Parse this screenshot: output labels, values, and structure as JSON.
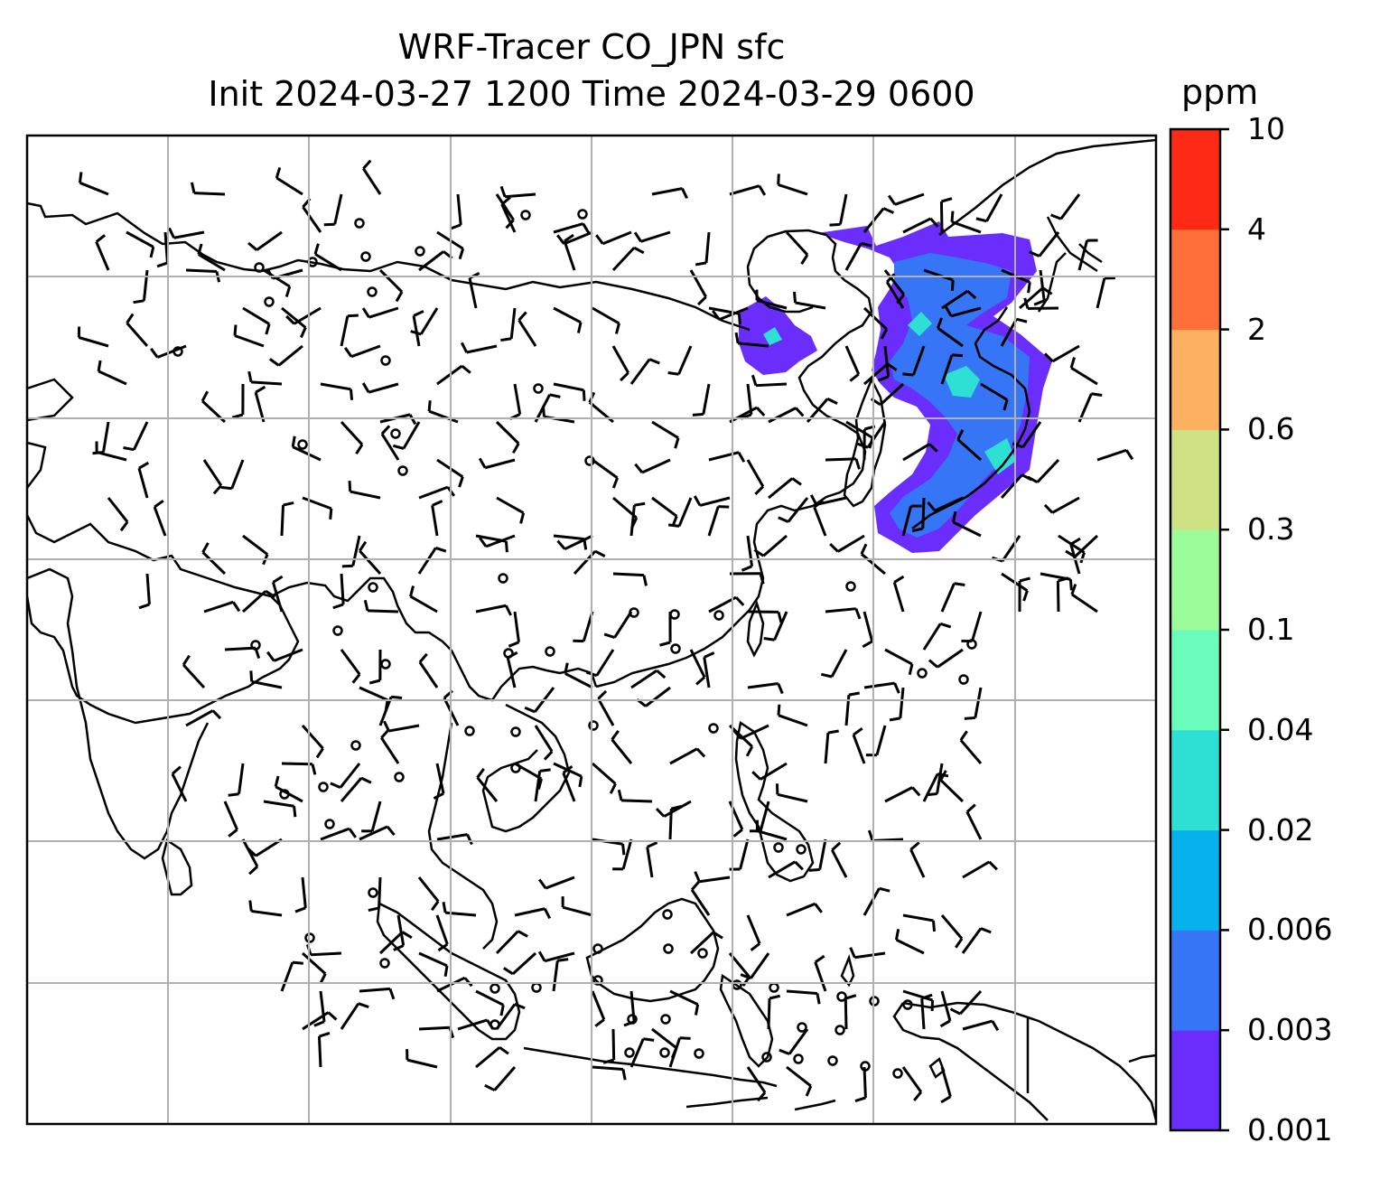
{
  "figure": {
    "title_line1": "WRF-Tracer CO_JPN sfc",
    "title_line2": "Init 2024-03-27 1200 Time 2024-03-29 0600"
  },
  "colorbar": {
    "unit": "ppm",
    "levels": [
      "0.001",
      "0.003",
      "0.006",
      "0.02",
      "0.04",
      "0.1",
      "0.3",
      "0.6",
      "2",
      "4",
      "10"
    ],
    "colors": [
      "#6a2dfc",
      "#3675f5",
      "#06b1ec",
      "#2ee0d4",
      "#6afcbb",
      "#9dfc9a",
      "#cfe283",
      "#fdb160",
      "#ff6f39",
      "#ff2a16"
    ]
  },
  "map": {
    "gridlines": true,
    "plume_colors": [
      "#6a2dfc",
      "#3675f5",
      "#2ee0d4"
    ]
  }
}
